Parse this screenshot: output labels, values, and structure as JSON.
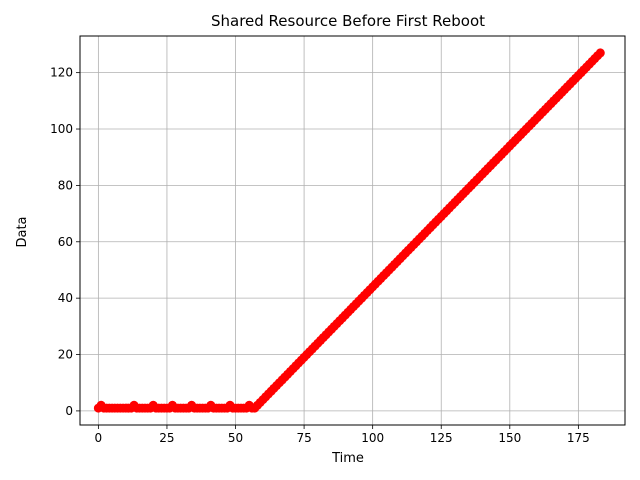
{
  "chart_data": {
    "type": "scatter",
    "title": "Shared Resource Before First Reboot",
    "xlabel": "Time",
    "ylabel": "Data",
    "xlim": [
      -6.7,
      192.0
    ],
    "ylim": [
      -5.0,
      133.0
    ],
    "x_ticks": [
      0,
      25,
      50,
      75,
      100,
      125,
      150,
      175
    ],
    "y_ticks": [
      0,
      20,
      40,
      60,
      80,
      100,
      120
    ],
    "grid": true,
    "legend": "none",
    "marker_color": "#ff0000",
    "series": [
      {
        "x": [
          0,
          1,
          2,
          3,
          4,
          5,
          6,
          7,
          8,
          9,
          10,
          11,
          12,
          13,
          14,
          15,
          16,
          17,
          18,
          19,
          20,
          21,
          22,
          23,
          24,
          25,
          26,
          27,
          28,
          29,
          30,
          31,
          32,
          33,
          34,
          35,
          36,
          37,
          38,
          39,
          40,
          41,
          42,
          43,
          44,
          45,
          46,
          47,
          48,
          49,
          50,
          51,
          52,
          53,
          54,
          55,
          56,
          57,
          58,
          59,
          60,
          61,
          62,
          63,
          64,
          65,
          66,
          67,
          68,
          69,
          70,
          71,
          72,
          73,
          74,
          75,
          76,
          77,
          78,
          79,
          80,
          81,
          82,
          83,
          84,
          85,
          86,
          87,
          88,
          89,
          90,
          91,
          92,
          93,
          94,
          95,
          96,
          97,
          98,
          99,
          100,
          101,
          102,
          103,
          104,
          105,
          106,
          107,
          108,
          109,
          110,
          111,
          112,
          113,
          114,
          115,
          116,
          117,
          118,
          119,
          120,
          121,
          122,
          123,
          124,
          125,
          126,
          127,
          128,
          129,
          130,
          131,
          132,
          133,
          134,
          135,
          136,
          137,
          138,
          139,
          140,
          141,
          142,
          143,
          144,
          145,
          146,
          147,
          148,
          149,
          150,
          151,
          152,
          153,
          154,
          155,
          156,
          157,
          158,
          159,
          160,
          161,
          162,
          163,
          164,
          165,
          166,
          167,
          168,
          169,
          170,
          171,
          172,
          173,
          174,
          175,
          176,
          177,
          178,
          179,
          180,
          181,
          182,
          183
        ],
        "y": [
          1,
          2,
          1,
          1,
          1,
          1,
          1,
          1,
          1,
          1,
          1,
          1,
          1,
          2,
          1,
          1,
          1,
          1,
          1,
          1,
          2,
          1,
          1,
          1,
          1,
          1,
          1,
          2,
          1,
          1,
          1,
          1,
          1,
          1,
          2,
          1,
          1,
          1,
          1,
          1,
          1,
          2,
          1,
          1,
          1,
          1,
          1,
          1,
          2,
          1,
          1,
          1,
          1,
          1,
          1,
          2,
          1,
          1,
          2,
          3,
          4,
          5,
          6,
          7,
          8,
          9,
          10,
          11,
          12,
          13,
          14,
          15,
          16,
          17,
          18,
          19,
          20,
          21,
          22,
          23,
          24,
          25,
          26,
          27,
          28,
          29,
          30,
          31,
          32,
          33,
          34,
          35,
          36,
          37,
          38,
          39,
          40,
          41,
          42,
          43,
          44,
          45,
          46,
          47,
          48,
          49,
          50,
          51,
          52,
          53,
          54,
          55,
          56,
          57,
          58,
          59,
          60,
          61,
          62,
          63,
          64,
          65,
          66,
          67,
          68,
          69,
          70,
          71,
          72,
          73,
          74,
          75,
          76,
          77,
          78,
          79,
          80,
          81,
          82,
          83,
          84,
          85,
          86,
          87,
          88,
          89,
          90,
          91,
          92,
          93,
          94,
          95,
          96,
          97,
          98,
          99,
          100,
          101,
          102,
          103,
          104,
          105,
          106,
          107,
          108,
          109,
          110,
          111,
          112,
          113,
          114,
          115,
          116,
          117,
          118,
          119,
          120,
          121,
          122,
          123,
          124,
          125,
          126,
          127
        ]
      }
    ]
  }
}
